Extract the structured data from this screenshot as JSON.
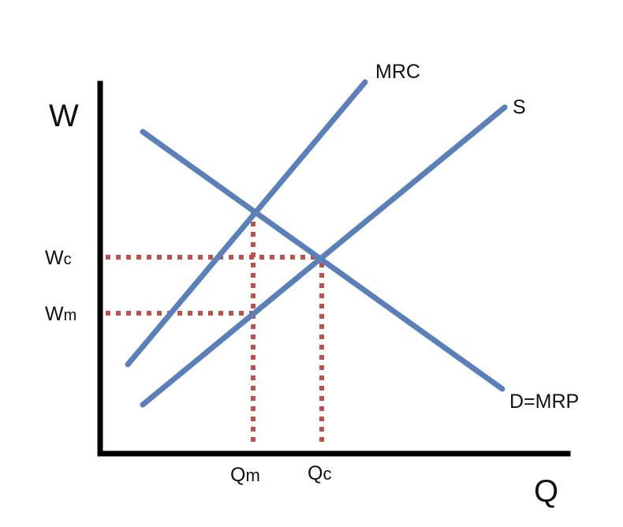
{
  "colors": {
    "curve": "#5b7fb9",
    "guide": "#b85450",
    "axis": "#000000",
    "background": "#ffffff"
  },
  "axes": {
    "y_title": "W",
    "x_title": "Q"
  },
  "curves": {
    "mrc": {
      "label": "MRC",
      "slope": "upward, steep"
    },
    "supply": {
      "label": "S",
      "slope": "upward"
    },
    "demand": {
      "label": "D=MRP",
      "slope": "downward"
    }
  },
  "wage_labels": {
    "competitive": {
      "main": "W",
      "sub": "c"
    },
    "monopsony": {
      "main": "W",
      "sub": "m"
    }
  },
  "quantity_labels": {
    "monopsony": {
      "main": "Q",
      "sub": "m"
    },
    "competitive": {
      "main": "Q",
      "sub": "c"
    }
  }
}
